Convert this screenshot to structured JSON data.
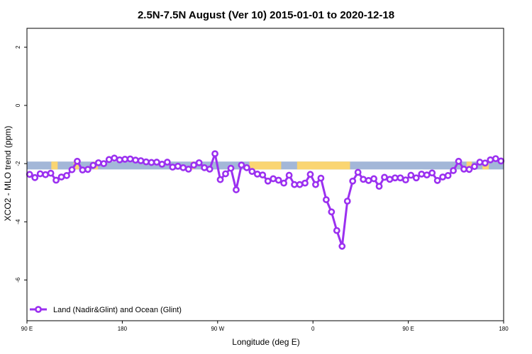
{
  "chart_data": {
    "type": "line",
    "title": "2.5N-7.5N August (Ver 10)   2015-01-01 to 2020-12-18",
    "xlabel": "Longitude (deg E)",
    "ylabel": "XCO2 - MLO trend (ppm)",
    "x_tick_values": [
      90,
      180,
      270,
      360,
      450,
      540
    ],
    "x_tick_labels": [
      "90 E",
      "180",
      "90 W",
      "0",
      "90 E",
      "180"
    ],
    "xlim": [
      90,
      540
    ],
    "y_tick_values": [
      2,
      0,
      -2,
      -4,
      -6
    ],
    "y_tick_labels": [
      "2",
      "0",
      "-2",
      "-4",
      "-6"
    ],
    "ylim": [
      -7.4,
      2.65
    ],
    "land_ocean_strip": {
      "y_range": [
        -2.2,
        -1.93
      ],
      "ocean_color": "#a3b7d8",
      "land_color": "#fad572",
      "land_segments": [
        [
          113,
          119
        ],
        [
          134,
          139
        ],
        [
          153,
          157
        ],
        [
          245,
          248
        ],
        [
          300,
          330
        ],
        [
          345,
          395
        ],
        [
          505,
          510
        ],
        [
          520,
          526
        ],
        [
          558,
          563
        ],
        [
          603,
          607
        ]
      ]
    },
    "legend": {
      "position": "bottom-left"
    },
    "series": [
      {
        "name": "Land (Nadir&Glint) and Ocean (Glint)",
        "color": "#9b30f0",
        "x": [
          92.5,
          97.5,
          102.5,
          107.5,
          112.5,
          117.5,
          122.5,
          127.5,
          132.5,
          137.5,
          142.5,
          147.5,
          152.5,
          157.5,
          162.5,
          167.5,
          172.5,
          177.5,
          182.5,
          187.5,
          192.5,
          197.5,
          202.5,
          207.5,
          212.5,
          217.5,
          222.5,
          227.5,
          232.5,
          237.5,
          242.5,
          247.5,
          252.5,
          257.5,
          262.5,
          267.5,
          272.5,
          277.5,
          282.5,
          287.5,
          292.5,
          297.5,
          302.5,
          307.5,
          312.5,
          317.5,
          322.5,
          327.5,
          332.5,
          337.5,
          342.5,
          347.5,
          352.5,
          357.5,
          362.5,
          367.5,
          372.5,
          377.5,
          382.5,
          387.5,
          392.5,
          397.5,
          402.5,
          407.5,
          412.5,
          417.5,
          422.5,
          427.5,
          432.5,
          437.5,
          442.5,
          447.5,
          452.5,
          457.5,
          462.5,
          467.5,
          472.5,
          477.5,
          482.5,
          487.5,
          492.5,
          497.5,
          502.5,
          507.5,
          512.5,
          517.5,
          522.5,
          527.5,
          532.5,
          537.5
        ],
        "values": [
          -2.37,
          -2.48,
          -2.35,
          -2.38,
          -2.33,
          -2.57,
          -2.46,
          -2.41,
          -2.21,
          -1.92,
          -2.22,
          -2.2,
          -2.06,
          -1.97,
          -2.0,
          -1.86,
          -1.81,
          -1.87,
          -1.85,
          -1.84,
          -1.88,
          -1.9,
          -1.94,
          -1.96,
          -1.95,
          -2.02,
          -1.95,
          -2.12,
          -2.09,
          -2.14,
          -2.19,
          -2.05,
          -1.97,
          -2.14,
          -2.19,
          -1.66,
          -2.55,
          -2.35,
          -2.16,
          -2.9,
          -2.05,
          -2.14,
          -2.27,
          -2.36,
          -2.39,
          -2.6,
          -2.52,
          -2.57,
          -2.67,
          -2.4,
          -2.72,
          -2.72,
          -2.67,
          -2.37,
          -2.72,
          -2.5,
          -3.24,
          -3.66,
          -4.3,
          -4.84,
          -3.29,
          -2.6,
          -2.3,
          -2.54,
          -2.58,
          -2.52,
          -2.78,
          -2.47,
          -2.54,
          -2.49,
          -2.49,
          -2.56,
          -2.4,
          -2.49,
          -2.36,
          -2.39,
          -2.32,
          -2.58,
          -2.46,
          -2.41,
          -2.24,
          -1.92,
          -2.19,
          -2.2,
          -2.1,
          -1.95,
          -1.98,
          -1.87,
          -1.83,
          -1.91
        ]
      }
    ]
  }
}
